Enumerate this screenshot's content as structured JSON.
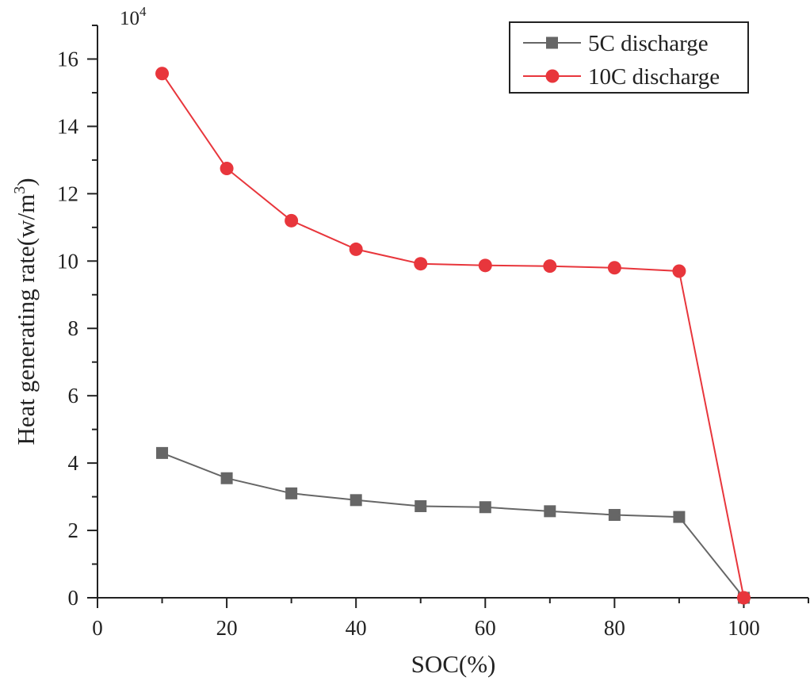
{
  "chart_data": {
    "type": "line",
    "title": "",
    "xlabel": "SOC(%)",
    "ylabel": "Heat generating rate(w/m",
    "ylabel_sup": "3",
    "ylabel_close": ")",
    "y_multiplier": "10",
    "y_multiplier_exp": "4",
    "xlim": [
      0,
      110
    ],
    "ylim": [
      0,
      17
    ],
    "x_ticks": [
      0,
      20,
      40,
      60,
      80,
      100
    ],
    "y_ticks": [
      0,
      2,
      4,
      6,
      8,
      10,
      12,
      14,
      16
    ],
    "x_tick_labels": [
      "0",
      "20",
      "40",
      "60",
      "80",
      "100"
    ],
    "y_tick_labels": [
      "0",
      "2",
      "4",
      "6",
      "8",
      "10",
      "12",
      "14",
      "16"
    ],
    "grid": false,
    "legend_position": "top-right",
    "series": [
      {
        "name": "5C discharge",
        "marker": "square",
        "color": "#666666",
        "x": [
          10,
          20,
          30,
          40,
          50,
          60,
          70,
          80,
          90,
          100
        ],
        "values": [
          4.3,
          3.55,
          3.1,
          2.9,
          2.72,
          2.69,
          2.57,
          2.46,
          2.4,
          0.0
        ]
      },
      {
        "name": "10C discharge",
        "marker": "circle",
        "color": "#e8363c",
        "x": [
          10,
          20,
          30,
          40,
          50,
          60,
          70,
          80,
          90,
          100
        ],
        "values": [
          15.57,
          12.75,
          11.2,
          10.35,
          9.92,
          9.87,
          9.85,
          9.8,
          9.7,
          0.0
        ]
      }
    ]
  }
}
